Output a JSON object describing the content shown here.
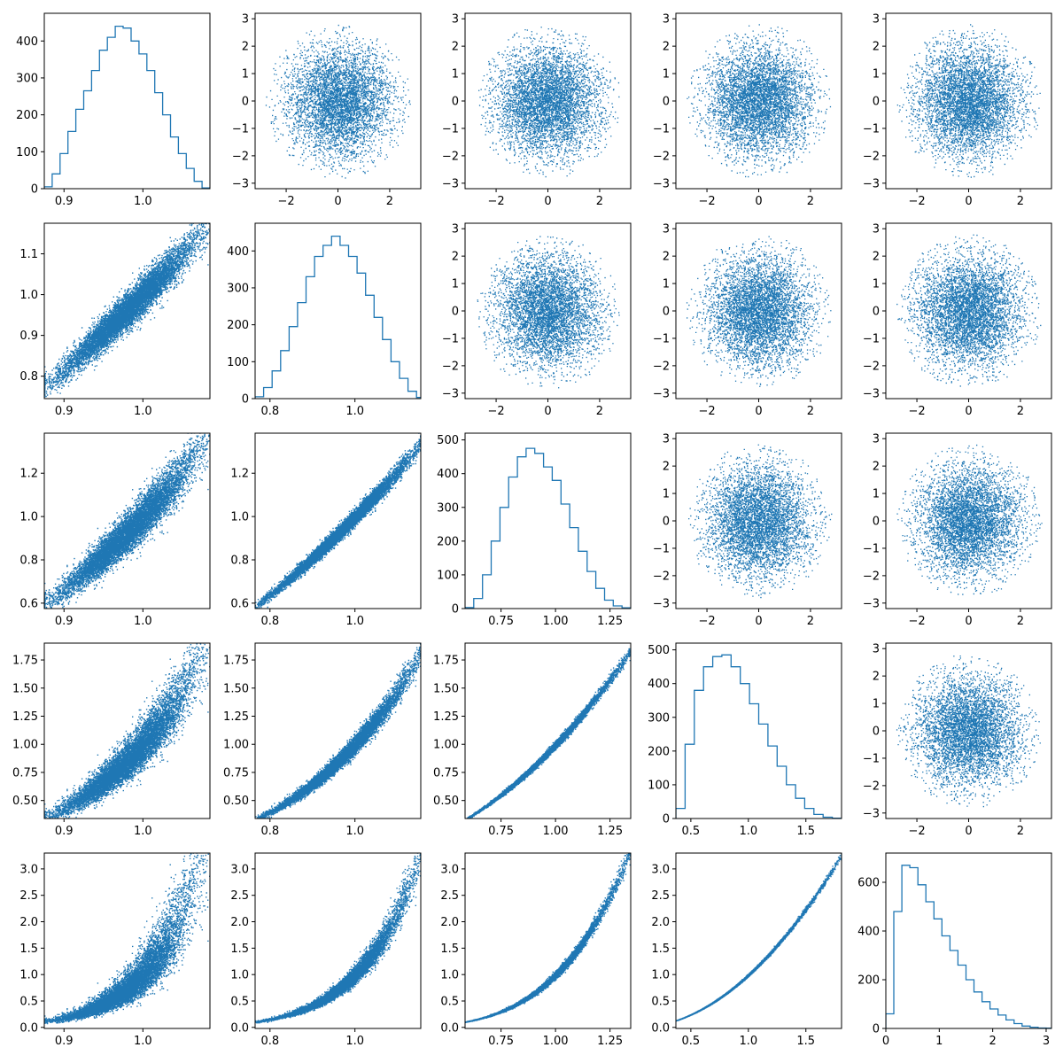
{
  "chart_data": {
    "type": "pairplot",
    "title": "",
    "n_vars": 5,
    "series_color": "#1f77b4",
    "variables": [
      {
        "range": [
          0.875,
          1.085
        ],
        "xticks": [
          0.9,
          1.0
        ],
        "xtick_labels": [
          "0.9",
          "1.0"
        ],
        "yticks": [
          0.8,
          0.9,
          1.0,
          1.1
        ],
        "ytick_labels": [
          "0.8",
          "0.9",
          "1.0",
          "1.1"
        ]
      },
      {
        "range": [
          0.765,
          1.155
        ],
        "xticks": [
          0.8,
          1.0
        ],
        "xtick_labels": [
          "0.8",
          "1.0"
        ],
        "yticks": [
          0.6,
          0.8,
          1.0,
          1.2
        ],
        "ytick_labels": [
          "0.6",
          "0.8",
          "1.0",
          "1.2"
        ]
      },
      {
        "range": [
          0.585,
          1.345
        ],
        "xticks": [
          0.75,
          1.0,
          1.25
        ],
        "xtick_labels": [
          "0.75",
          "1.00",
          "1.25"
        ],
        "yticks": [
          0.5,
          0.75,
          1.0,
          1.25,
          1.5,
          1.75
        ],
        "ytick_labels": [
          "0.50",
          "0.75",
          "1.00",
          "1.25",
          "1.50",
          "1.75"
        ]
      },
      {
        "range": [
          0.37,
          1.81
        ],
        "xticks": [
          0.5,
          1.0,
          1.5
        ],
        "xtick_labels": [
          "0.5",
          "1.0",
          "1.5"
        ],
        "yticks": [
          0.0,
          0.5,
          1.0,
          1.5,
          2.0,
          2.5,
          3.0
        ],
        "ytick_labels": [
          "0.0",
          "0.5",
          "1.0",
          "1.5",
          "2.0",
          "2.5",
          "3.0"
        ]
      },
      {
        "range": [
          0.0,
          3.1
        ],
        "xticks": [
          0,
          1,
          2,
          3
        ],
        "xtick_labels": [
          "0",
          "1",
          "2",
          "3"
        ]
      }
    ],
    "scatter_axes": {
      "xlim": [
        -3.2,
        3.2
      ],
      "ylim": [
        -3.2,
        3.2
      ],
      "xticks": [
        -2,
        0,
        2
      ],
      "xtick_labels": [
        "−2",
        "0",
        "2"
      ],
      "yticks": [
        -3,
        -2,
        -1,
        0,
        1,
        2,
        3
      ],
      "ytick_labels": [
        "−3",
        "−2",
        "−1",
        "0",
        "1",
        "2",
        "3"
      ]
    },
    "lower_panel_ylim": [
      null,
      [
        0.745,
        1.175
      ],
      [
        0.575,
        1.385
      ],
      [
        0.34,
        1.9
      ],
      [
        -0.02,
        3.3
      ]
    ],
    "histograms": [
      {
        "bins": [
          0.875,
          0.885,
          0.895,
          0.905,
          0.915,
          0.925,
          0.935,
          0.945,
          0.955,
          0.965,
          0.975,
          0.985,
          0.995,
          1.005,
          1.015,
          1.025,
          1.035,
          1.045,
          1.055,
          1.065,
          1.075,
          1.085
        ],
        "counts": [
          5,
          40,
          95,
          155,
          215,
          265,
          320,
          375,
          410,
          440,
          435,
          400,
          365,
          320,
          260,
          200,
          140,
          95,
          55,
          20,
          2
        ],
        "ylim": [
          0,
          475
        ],
        "yticks": [
          0,
          100,
          200,
          300,
          400
        ],
        "ytick_labels": [
          "0",
          "100",
          "200",
          "300",
          "400"
        ]
      },
      {
        "bins": [
          0.765,
          0.785,
          0.805,
          0.825,
          0.845,
          0.865,
          0.885,
          0.905,
          0.925,
          0.945,
          0.965,
          0.985,
          1.005,
          1.025,
          1.045,
          1.065,
          1.085,
          1.105,
          1.125,
          1.145,
          1.165
        ],
        "counts": [
          5,
          30,
          75,
          130,
          195,
          260,
          330,
          385,
          415,
          440,
          415,
          385,
          340,
          280,
          220,
          160,
          100,
          55,
          20,
          3
        ],
        "ylim": [
          0,
          475
        ],
        "yticks": [
          0,
          100,
          200,
          300,
          400
        ],
        "ytick_labels": [
          "0",
          "100",
          "200",
          "300",
          "400"
        ]
      },
      {
        "bins": [
          0.585,
          0.625,
          0.665,
          0.705,
          0.745,
          0.785,
          0.825,
          0.865,
          0.905,
          0.945,
          0.985,
          1.025,
          1.065,
          1.105,
          1.145,
          1.185,
          1.225,
          1.265,
          1.305,
          1.345
        ],
        "counts": [
          3,
          30,
          100,
          200,
          300,
          390,
          450,
          475,
          460,
          420,
          380,
          310,
          240,
          170,
          110,
          60,
          25,
          8,
          2
        ],
        "ylim": [
          0,
          520
        ],
        "yticks": [
          0,
          100,
          200,
          300,
          400,
          500
        ],
        "ytick_labels": [
          "0",
          "100",
          "200",
          "300",
          "400",
          "500"
        ]
      },
      {
        "bins": [
          0.37,
          0.45,
          0.53,
          0.61,
          0.69,
          0.77,
          0.85,
          0.93,
          1.01,
          1.09,
          1.17,
          1.25,
          1.33,
          1.41,
          1.49,
          1.57,
          1.65,
          1.73,
          1.81
        ],
        "counts": [
          30,
          220,
          380,
          450,
          480,
          485,
          450,
          400,
          340,
          280,
          215,
          155,
          100,
          60,
          30,
          12,
          4,
          1
        ],
        "ylim": [
          0,
          520
        ],
        "yticks": [
          0,
          100,
          200,
          300,
          400,
          500
        ],
        "ytick_labels": [
          "0",
          "100",
          "200",
          "300",
          "400",
          "500"
        ]
      },
      {
        "bins": [
          0.0,
          0.15,
          0.3,
          0.45,
          0.6,
          0.75,
          0.9,
          1.05,
          1.2,
          1.35,
          1.5,
          1.65,
          1.8,
          1.95,
          2.1,
          2.25,
          2.4,
          2.55,
          2.7,
          2.85,
          3.0,
          3.1
        ],
        "counts": [
          60,
          480,
          670,
          660,
          590,
          520,
          450,
          380,
          320,
          260,
          200,
          150,
          110,
          80,
          55,
          35,
          20,
          10,
          5,
          2,
          1
        ],
        "ylim": [
          0,
          720
        ],
        "yticks": [
          0,
          200,
          400,
          600
        ],
        "ytick_labels": [
          "0",
          "200",
          "400",
          "600"
        ]
      }
    ]
  }
}
